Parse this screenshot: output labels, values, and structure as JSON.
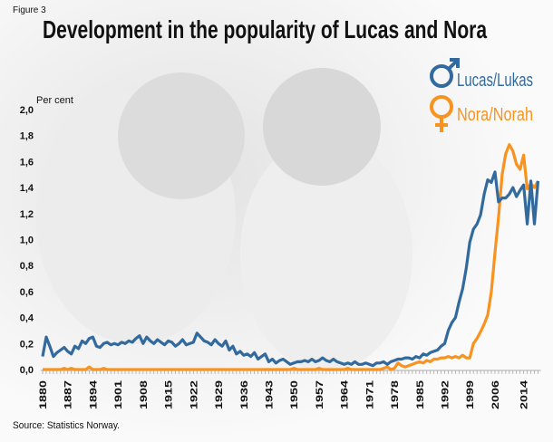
{
  "figure_label": "Figure 3",
  "source": "Source: Statistics Norway.",
  "chart_data": {
    "type": "line",
    "title": "Development in the popularity of Lucas and Nora",
    "ylabel": "Per cent",
    "xlabel": "",
    "xlim": [
      1880,
      2018
    ],
    "ylim": [
      0,
      2.0
    ],
    "grid": false,
    "legend_placement": "top-right",
    "x_tick_labels": [
      "1880",
      "1887",
      "1894",
      "1901",
      "1908",
      "1915",
      "1922",
      "1929",
      "1936",
      "1943",
      "1950",
      "1957",
      "1964",
      "1971",
      "1978",
      "1985",
      "1992",
      "1999",
      "2006",
      "2014"
    ],
    "y_tick_labels": [
      "0,0",
      "0,2",
      "0,4",
      "0,6",
      "0,8",
      "1,0",
      "1,2",
      "1,4",
      "1,6",
      "1,8",
      "2,0"
    ],
    "x_start": 1880,
    "series": [
      {
        "name": "Lucas/Lukas",
        "symbol": "male-symbol",
        "color": "#336a9e",
        "values": [
          0.1,
          0.25,
          0.18,
          0.1,
          0.13,
          0.15,
          0.17,
          0.14,
          0.12,
          0.18,
          0.16,
          0.22,
          0.2,
          0.24,
          0.25,
          0.18,
          0.17,
          0.2,
          0.21,
          0.19,
          0.2,
          0.19,
          0.21,
          0.2,
          0.22,
          0.21,
          0.24,
          0.26,
          0.2,
          0.25,
          0.22,
          0.2,
          0.23,
          0.21,
          0.19,
          0.22,
          0.21,
          0.18,
          0.2,
          0.23,
          0.19,
          0.2,
          0.21,
          0.28,
          0.25,
          0.22,
          0.21,
          0.19,
          0.23,
          0.2,
          0.18,
          0.22,
          0.15,
          0.18,
          0.12,
          0.14,
          0.11,
          0.12,
          0.1,
          0.13,
          0.08,
          0.1,
          0.12,
          0.06,
          0.08,
          0.05,
          0.07,
          0.08,
          0.06,
          0.04,
          0.05,
          0.06,
          0.06,
          0.07,
          0.06,
          0.08,
          0.06,
          0.07,
          0.09,
          0.07,
          0.06,
          0.08,
          0.06,
          0.05,
          0.04,
          0.05,
          0.04,
          0.06,
          0.04,
          0.04,
          0.05,
          0.04,
          0.03,
          0.05,
          0.05,
          0.06,
          0.04,
          0.06,
          0.07,
          0.08,
          0.08,
          0.09,
          0.09,
          0.08,
          0.1,
          0.09,
          0.12,
          0.11,
          0.13,
          0.14,
          0.15,
          0.18,
          0.2,
          0.3,
          0.36,
          0.4,
          0.52,
          0.62,
          0.78,
          0.98,
          1.08,
          1.12,
          1.19,
          1.35,
          1.46,
          1.44,
          1.52,
          1.29,
          1.32,
          1.32,
          1.35,
          1.4,
          1.33,
          1.38,
          1.42,
          1.12,
          1.45,
          1.12,
          1.45
        ]
      },
      {
        "name": "Nora/Norah",
        "symbol": "female-symbol",
        "color": "#f7931e",
        "values": [
          0,
          0,
          0,
          0,
          0,
          0,
          0.01,
          0,
          0.01,
          0,
          0,
          0,
          0,
          0.02,
          0,
          0,
          0,
          0.01,
          0,
          0,
          0,
          0,
          0,
          0,
          0,
          0,
          0,
          0,
          0,
          0,
          0,
          0,
          0,
          0,
          0,
          0,
          0,
          0,
          0,
          0,
          0,
          0,
          0,
          0,
          0,
          0,
          0,
          0,
          0,
          0,
          0,
          0,
          0,
          0,
          0,
          0,
          0,
          0,
          0,
          0,
          0,
          0,
          0,
          0,
          0,
          0,
          0,
          0,
          0,
          0,
          0.01,
          0,
          0,
          0,
          0,
          0,
          0,
          0.01,
          0,
          0,
          0,
          0,
          0,
          0,
          0,
          0.01,
          0,
          0,
          0,
          0,
          0,
          0,
          0,
          0,
          0,
          0.01,
          0.02,
          0,
          0.01,
          0.05,
          0.03,
          0.02,
          0.03,
          0.04,
          0.05,
          0.06,
          0.05,
          0.07,
          0.06,
          0.08,
          0.08,
          0.09,
          0.09,
          0.1,
          0.09,
          0.1,
          0.09,
          0.11,
          0.09,
          0.09,
          0.2,
          0.24,
          0.29,
          0.35,
          0.42,
          0.6,
          0.9,
          1.17,
          1.5,
          1.66,
          1.73,
          1.68,
          1.58,
          1.54,
          1.65,
          1.39,
          1.43,
          1.4,
          1.45
        ]
      }
    ]
  }
}
